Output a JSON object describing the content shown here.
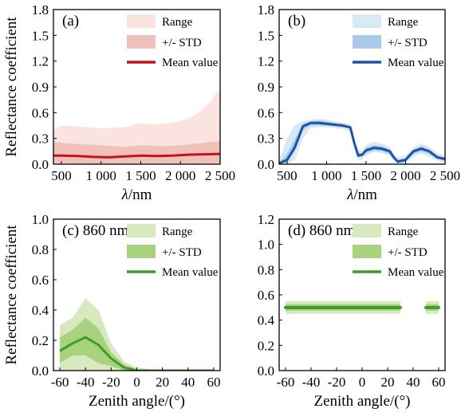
{
  "chart_data": [
    {
      "type": "area",
      "panel_label": "(a)",
      "title": "",
      "xlabel": "λ/nm",
      "ylabel": "Reflectance coefficient",
      "xlim": [
        400,
        2500
      ],
      "ylim": [
        0,
        1.8
      ],
      "x_ticks": [
        500,
        1000,
        1500,
        2000,
        2500
      ],
      "x_tick_labels": [
        "500",
        "1 000",
        "1 500",
        "2 000",
        "2 500"
      ],
      "y_ticks": [
        0,
        0.3,
        0.6,
        0.9,
        1.2,
        1.5,
        1.8
      ],
      "y_tick_labels": [
        "0.0",
        "0.3",
        "0.6",
        "0.9",
        "1.2",
        "1.5",
        "1.8"
      ],
      "legend": [
        "Range",
        "+/- STD",
        "Mean value"
      ],
      "legend_position": "top-right",
      "colors": {
        "range": "#fbe3e0",
        "std": "#f1c0bb",
        "mean": "#c0151d"
      },
      "series": [
        {
          "name": "Range",
          "x": [
            400,
            500,
            700,
            1000,
            1300,
            1500,
            1700,
            2000,
            2200,
            2350,
            2450,
            2500
          ],
          "lower": [
            0,
            0,
            0,
            0,
            0,
            0,
            0,
            0,
            0,
            0,
            0,
            0
          ],
          "upper": [
            0.4,
            0.45,
            0.44,
            0.42,
            0.43,
            0.48,
            0.46,
            0.5,
            0.58,
            0.7,
            0.82,
            0.86
          ]
        },
        {
          "name": "+/- STD",
          "x": [
            400,
            600,
            1000,
            1300,
            1500,
            1800,
            2000,
            2300,
            2500
          ],
          "lower": [
            0.01,
            0.01,
            0.0,
            0.0,
            0.01,
            0.01,
            0.01,
            0.01,
            0.01
          ],
          "upper": [
            0.26,
            0.24,
            0.22,
            0.2,
            0.22,
            0.21,
            0.22,
            0.25,
            0.27
          ]
        },
        {
          "name": "Mean value",
          "x": [
            400,
            500,
            700,
            900,
            1100,
            1300,
            1500,
            1700,
            1900,
            2100,
            2300,
            2500
          ],
          "values": [
            0.1,
            0.1,
            0.095,
            0.085,
            0.08,
            0.09,
            0.1,
            0.095,
            0.1,
            0.11,
            0.115,
            0.12
          ]
        }
      ]
    },
    {
      "type": "area",
      "panel_label": "(b)",
      "title": "",
      "xlabel": "λ/nm",
      "ylabel": "",
      "xlim": [
        400,
        2500
      ],
      "ylim": [
        0,
        1.8
      ],
      "x_ticks": [
        500,
        1000,
        1500,
        2000,
        2500
      ],
      "x_tick_labels": [
        "500",
        "1 000",
        "1 500",
        "2 000",
        "2 500"
      ],
      "y_ticks": [
        0,
        0.3,
        0.6,
        0.9,
        1.2,
        1.5,
        1.8
      ],
      "y_tick_labels": [
        "0.0",
        "0.3",
        "0.6",
        "0.9",
        "1.2",
        "1.5",
        "1.8"
      ],
      "legend": [
        "Range",
        "+/- STD",
        "Mean value"
      ],
      "legend_position": "top-right",
      "colors": {
        "range": "#d7e9f4",
        "std": "#a9cbe8",
        "mean": "#2253a3"
      },
      "series": [
        {
          "name": "Range",
          "x": [
            400,
            500,
            600,
            700,
            800,
            900,
            1000,
            1100,
            1200,
            1300,
            1350,
            1400,
            1450,
            1500,
            1600,
            1700,
            1800,
            1850,
            1900,
            2000,
            2100,
            2200,
            2300,
            2400,
            2500
          ],
          "lower": [
            0.0,
            0.0,
            0.05,
            0.3,
            0.42,
            0.43,
            0.43,
            0.42,
            0.41,
            0.38,
            0.2,
            0.05,
            0.05,
            0.1,
            0.14,
            0.13,
            0.1,
            0.04,
            0.0,
            0.0,
            0.09,
            0.12,
            0.09,
            0.04,
            0.02
          ],
          "upper": [
            0.04,
            0.3,
            0.46,
            0.5,
            0.52,
            0.53,
            0.52,
            0.5,
            0.49,
            0.46,
            0.3,
            0.16,
            0.16,
            0.22,
            0.26,
            0.24,
            0.2,
            0.12,
            0.08,
            0.1,
            0.2,
            0.24,
            0.2,
            0.13,
            0.1
          ]
        },
        {
          "name": "+/- STD",
          "x": [
            400,
            500,
            600,
            700,
            800,
            900,
            1000,
            1100,
            1200,
            1300,
            1350,
            1400,
            1450,
            1500,
            1600,
            1700,
            1800,
            1850,
            1900,
            2000,
            2100,
            2200,
            2300,
            2400,
            2500
          ],
          "lower": [
            0.0,
            0.02,
            0.15,
            0.4,
            0.45,
            0.45,
            0.45,
            0.44,
            0.43,
            0.41,
            0.23,
            0.08,
            0.09,
            0.13,
            0.16,
            0.15,
            0.12,
            0.06,
            0.01,
            0.03,
            0.12,
            0.15,
            0.12,
            0.06,
            0.04
          ],
          "upper": [
            0.02,
            0.12,
            0.3,
            0.47,
            0.5,
            0.51,
            0.5,
            0.48,
            0.47,
            0.44,
            0.27,
            0.13,
            0.13,
            0.19,
            0.22,
            0.21,
            0.17,
            0.1,
            0.05,
            0.07,
            0.17,
            0.21,
            0.17,
            0.1,
            0.08
          ]
        },
        {
          "name": "Mean value",
          "x": [
            400,
            500,
            600,
            700,
            800,
            900,
            1000,
            1100,
            1200,
            1300,
            1350,
            1400,
            1450,
            1500,
            1600,
            1700,
            1800,
            1850,
            1900,
            2000,
            2100,
            2200,
            2300,
            2400,
            2500
          ],
          "values": [
            0.01,
            0.05,
            0.2,
            0.44,
            0.48,
            0.48,
            0.47,
            0.46,
            0.45,
            0.43,
            0.25,
            0.1,
            0.11,
            0.16,
            0.19,
            0.18,
            0.15,
            0.08,
            0.03,
            0.05,
            0.15,
            0.18,
            0.15,
            0.08,
            0.06
          ]
        }
      ]
    },
    {
      "type": "area",
      "panel_label": "(c) 860 nm",
      "title": "",
      "xlabel": "Zenith angle/(°)",
      "ylabel": "Reflectance coefficient",
      "xlim": [
        -65,
        65
      ],
      "ylim": [
        0,
        1.0
      ],
      "x_ticks": [
        -60,
        -40,
        -20,
        0,
        20,
        40,
        60
      ],
      "x_tick_labels": [
        "-60",
        "-40",
        "-20",
        "0",
        "20",
        "40",
        "60"
      ],
      "y_ticks": [
        0,
        0.2,
        0.4,
        0.6,
        0.8,
        1.0
      ],
      "y_tick_labels": [
        "0.0",
        "0.2",
        "0.4",
        "0.6",
        "0.8",
        "1.0"
      ],
      "legend": [
        "Range",
        "+/- STD",
        "Mean value"
      ],
      "legend_position": "top-right",
      "colors": {
        "range": "#d6e9bf",
        "std": "#a9d27f",
        "mean": "#3f9c2c"
      },
      "series": [
        {
          "name": "Range",
          "x": [
            -60,
            -50,
            -40,
            -30,
            -20,
            -10,
            0,
            10,
            20,
            30,
            40,
            50,
            60
          ],
          "lower": [
            0.0,
            0.0,
            0.0,
            0.0,
            0.0,
            0.0,
            0.0,
            0.0,
            0.0,
            0.0,
            0.0,
            0.0,
            0.0
          ],
          "upper": [
            0.3,
            0.35,
            0.48,
            0.4,
            0.18,
            0.06,
            0.02,
            0.01,
            0.0,
            0.0,
            0.0,
            0.0,
            0.0
          ]
        },
        {
          "name": "+/- STD",
          "x": [
            -60,
            -50,
            -40,
            -30,
            -20,
            -10,
            0,
            10,
            20,
            30,
            40,
            50,
            60
          ],
          "lower": [
            0.05,
            0.1,
            0.1,
            0.05,
            0.03,
            0.0,
            0.0,
            0.0,
            0.0,
            0.0,
            0.0,
            0.0,
            0.0
          ],
          "upper": [
            0.22,
            0.27,
            0.35,
            0.28,
            0.12,
            0.04,
            0.01,
            0.0,
            0.0,
            0.0,
            0.0,
            0.0,
            0.0
          ]
        },
        {
          "name": "Mean value",
          "x": [
            -60,
            -50,
            -40,
            -30,
            -20,
            -10,
            0,
            10,
            20,
            30,
            40,
            50,
            60
          ],
          "values": [
            0.13,
            0.18,
            0.22,
            0.17,
            0.08,
            0.02,
            0.0,
            0.0,
            0.0,
            0.0,
            0.0,
            0.0,
            0.0
          ]
        }
      ]
    },
    {
      "type": "area",
      "panel_label": "(d) 860 nm",
      "title": "",
      "xlabel": "Zenith angle/(°)",
      "ylabel": "",
      "xlim": [
        -65,
        65
      ],
      "ylim": [
        0,
        1.2
      ],
      "x_ticks": [
        -60,
        -40,
        -20,
        0,
        20,
        40,
        60
      ],
      "x_tick_labels": [
        "-60",
        "-40",
        "-20",
        "0",
        "20",
        "40",
        "60"
      ],
      "y_ticks": [
        0,
        0.2,
        0.4,
        0.6,
        0.8,
        1.0,
        1.2
      ],
      "y_tick_labels": [
        "0.0",
        "0.2",
        "0.4",
        "0.6",
        "0.8",
        "1.0",
        "1.2"
      ],
      "legend": [
        "Range",
        "+/- STD",
        "Mean value"
      ],
      "legend_position": "top-right",
      "colors": {
        "range": "#d6e9bf",
        "std": "#a9d27f",
        "mean": "#3f9c2c"
      },
      "series": [
        {
          "name": "Range",
          "segments": [
            [
              -60,
              30
            ],
            [
              50,
              60
            ]
          ],
          "lower": 0.45,
          "upper": 0.55
        },
        {
          "name": "+/- STD",
          "segments": [
            [
              -60,
              30
            ],
            [
              50,
              60
            ]
          ],
          "lower": 0.475,
          "upper": 0.525
        },
        {
          "name": "Mean value",
          "segments": [
            [
              -60,
              30
            ],
            [
              50,
              60
            ]
          ],
          "values": 0.5
        }
      ]
    }
  ]
}
